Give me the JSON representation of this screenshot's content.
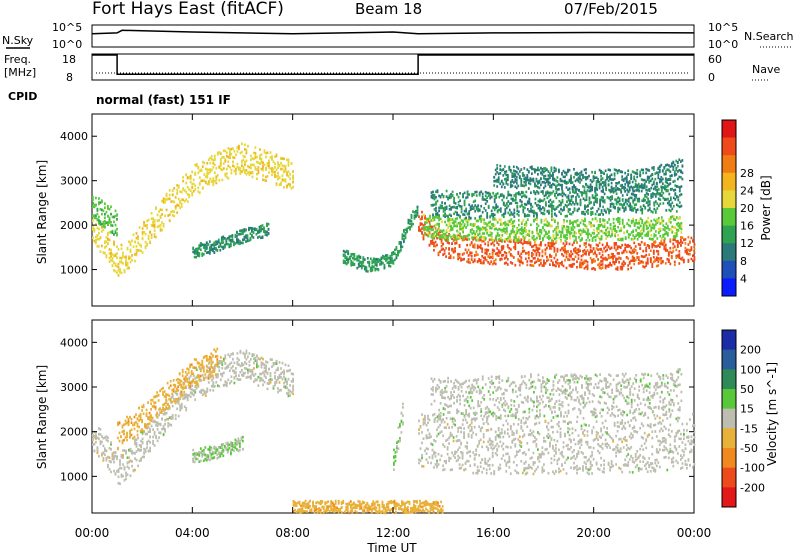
{
  "header": {
    "station": "Fort Hays East (fitACF)",
    "beam": "Beam 18",
    "date": "07/Feb/2015"
  },
  "top_panels": {
    "nsky_label": "N.Sky",
    "nsearch_label": "N.Search",
    "freq_label_1": "Freq.",
    "freq_label_2": "[MHz]",
    "nave_label": "Nave",
    "cpid_label": "CPID",
    "cpid_text": "normal (fast) 151 IF",
    "noise_ticks_left": [
      "10^5",
      "10^0"
    ],
    "noise_ticks_right": [
      "10^5",
      "10^0"
    ],
    "freq_ticks": [
      "18",
      "8"
    ],
    "nave_ticks": [
      "60",
      "0"
    ]
  },
  "colorbars": {
    "power": {
      "label": "Power [dB]",
      "ticks": [
        "4",
        "8",
        "12",
        "16",
        "20",
        "24",
        "28"
      ],
      "colors": [
        "#0b1cff",
        "#1f4fb8",
        "#2a7a7a",
        "#2ea352",
        "#59c93a",
        "#e6d83a",
        "#f2b51f",
        "#f07c14",
        "#ee4a1a",
        "#e01515"
      ]
    },
    "velocity": {
      "label": "Velocity [m s^-1]",
      "ticks": [
        "200",
        "100",
        "50",
        "15",
        "-15",
        "-50",
        "-100",
        "-200"
      ],
      "colors": [
        "#1a2ca6",
        "#2a5d9c",
        "#2e8b57",
        "#58c83a",
        "#bdbdb0",
        "#e8b13a",
        "#f08a20",
        "#ee4b1c",
        "#e31818"
      ]
    }
  },
  "x_axis": {
    "label": "Time UT",
    "ticks": [
      "00:00",
      "04:00",
      "08:00",
      "12:00",
      "16:00",
      "20:00",
      "00:00"
    ]
  },
  "chart_data": [
    {
      "type": "heatmap",
      "name": "power",
      "ylabel": "Slant Range [km]",
      "xlabel": "",
      "xlim": [
        0,
        24
      ],
      "ylim": [
        180,
        4500
      ],
      "yticks": [
        1000,
        2000,
        3000,
        4000
      ],
      "clim": [
        0,
        30
      ],
      "bands": [
        {
          "x": [
            0.0,
            0.5,
            1.0,
            1.5,
            2.0,
            3.0,
            4.0,
            5.0,
            6.0,
            7.0,
            8.0
          ],
          "y": [
            1900,
            1650,
            1150,
            1350,
            1700,
            2400,
            3000,
            3300,
            3500,
            3300,
            3100
          ],
          "width": 350,
          "value": 17
        },
        {
          "x": [
            0.0,
            0.5,
            1.0
          ],
          "y": [
            2400,
            2200,
            2000
          ],
          "width": 300,
          "value": 13
        },
        {
          "x": [
            4.0,
            5.0,
            6.0,
            7.0
          ],
          "y": [
            1400,
            1550,
            1750,
            1900
          ],
          "width": 150,
          "value": 9
        },
        {
          "x": [
            10.0,
            10.5,
            11.0,
            11.5,
            12.0,
            12.3,
            12.6,
            13.0
          ],
          "y": [
            1300,
            1180,
            1100,
            1150,
            1250,
            1600,
            2000,
            2400
          ],
          "width": 150,
          "value": 10
        },
        {
          "x": [
            13.0,
            13.5,
            14.0,
            15.0,
            16.0,
            17.0,
            18.0,
            19.0,
            20.0,
            21.0,
            22.0,
            23.0,
            24.0
          ],
          "y": [
            2100,
            1700,
            1550,
            1450,
            1400,
            1380,
            1350,
            1330,
            1300,
            1300,
            1320,
            1380,
            1500
          ],
          "width": 300,
          "value": 25
        },
        {
          "x": [
            13.2,
            14.0,
            16.0,
            18.0,
            20.0,
            22.0,
            23.5
          ],
          "y": [
            2000,
            1900,
            1900,
            1880,
            1900,
            1920,
            1950
          ],
          "width": 250,
          "value": 14
        },
        {
          "x": [
            13.5,
            15.0,
            17.0,
            19.0,
            21.0,
            23.5
          ],
          "y": [
            2500,
            2450,
            2450,
            2500,
            2550,
            2600
          ],
          "width": 300,
          "value": 9
        },
        {
          "x": [
            16.0,
            18.0,
            20.0,
            22.0,
            23.5
          ],
          "y": [
            3100,
            3050,
            3000,
            3000,
            3250
          ],
          "width": 250,
          "value": 8
        }
      ]
    },
    {
      "type": "heatmap",
      "name": "velocity",
      "ylabel": "Slant Range [km]",
      "xlabel": "Time UT",
      "xlim": [
        0,
        24
      ],
      "ylim": [
        180,
        4500
      ],
      "yticks": [
        1000,
        2000,
        3000,
        4000
      ],
      "clim": [
        -250,
        250
      ],
      "bands": [
        {
          "x": [
            0.0,
            0.5,
            1.0,
            1.5,
            2.0,
            3.0,
            4.0,
            5.0,
            6.0,
            7.0,
            8.0
          ],
          "y": [
            1900,
            1650,
            1150,
            1350,
            1700,
            2400,
            3000,
            3300,
            3500,
            3300,
            3100
          ],
          "width": 350,
          "value": 0
        },
        {
          "x": [
            1.0,
            2.0,
            3.0,
            4.0,
            5.0
          ],
          "y": [
            1900,
            2300,
            2800,
            3300,
            3600
          ],
          "width": 300,
          "value": -60
        },
        {
          "x": [
            4.0,
            5.0,
            6.0
          ],
          "y": [
            1450,
            1550,
            1750
          ],
          "width": 150,
          "value": 30
        },
        {
          "x": [
            12.0,
            12.2,
            12.4
          ],
          "y": [
            1400,
            1900,
            2500
          ],
          "width": 250,
          "value": 30
        },
        {
          "x": [
            13.0,
            14.0,
            16.0,
            18.0,
            20.0,
            22.0,
            24.0
          ],
          "y": [
            1800,
            1700,
            1650,
            1650,
            1650,
            1680,
            1800
          ],
          "width": 600,
          "value": 0
        },
        {
          "x": [
            13.5,
            16.0,
            18.0,
            20.0,
            22.0,
            23.5
          ],
          "y": [
            2700,
            2750,
            2800,
            2800,
            2800,
            2900
          ],
          "width": 500,
          "value": 5
        },
        {
          "x": [
            8.0,
            10.0,
            12.0,
            14.0
          ],
          "y": [
            300,
            300,
            300,
            300
          ],
          "width": 150,
          "value": -60
        }
      ]
    }
  ],
  "nsky_series": {
    "x": [
      0,
      1,
      1.2,
      4,
      8,
      12,
      13,
      16,
      20,
      24
    ],
    "y": [
      3.0,
      3.2,
      3.8,
      3.4,
      3.0,
      3.4,
      3.0,
      3.2,
      3.3,
      3.2
    ]
  },
  "freq_series": {
    "x": [
      0,
      1,
      1,
      13,
      13,
      24
    ],
    "y": [
      18,
      18,
      10,
      10,
      18,
      18
    ]
  }
}
